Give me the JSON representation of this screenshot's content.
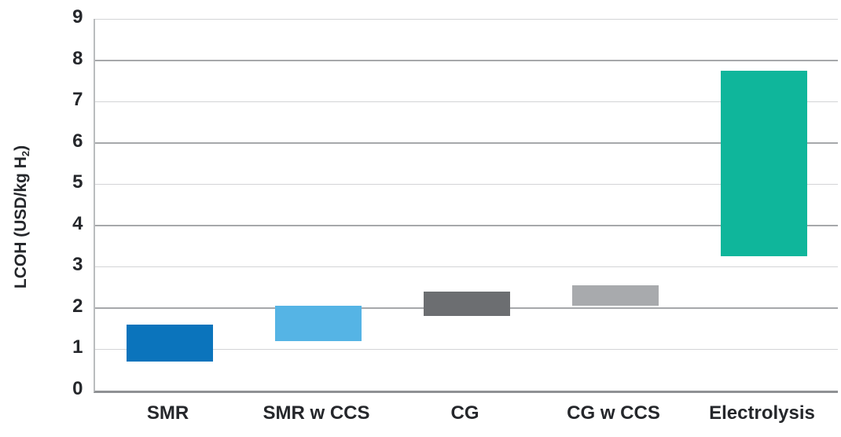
{
  "chart": {
    "y_axis": {
      "title_main": "LCOH (USD/kg H",
      "title_sub": "2",
      "title_end": ")",
      "ticks": [
        "0",
        "1",
        "2",
        "3",
        "4",
        "5",
        "6",
        "7",
        "8",
        "9"
      ]
    }
  },
  "chart_data": {
    "type": "bar",
    "subtype": "floating_range_bars",
    "title": "",
    "xlabel": "",
    "ylabel": "LCOH (USD/kg H2)",
    "categories": [
      "SMR",
      "SMR w CCS",
      "CG",
      "CG w CCS",
      "Electrolysis"
    ],
    "series": [
      {
        "name": "LCOH range",
        "low": [
          0.7,
          1.2,
          1.8,
          2.05,
          3.25
        ],
        "high": [
          1.6,
          2.05,
          2.4,
          2.55,
          7.75
        ]
      }
    ],
    "bar_colors": [
      "#0b74bc",
      "#55b4e5",
      "#6c6e71",
      "#a8aaad",
      "#0fb69b"
    ],
    "ylim": [
      0,
      9
    ],
    "ytick_step": 1,
    "grid": "horizontal",
    "grid_major_every": 2,
    "legend": "none"
  }
}
